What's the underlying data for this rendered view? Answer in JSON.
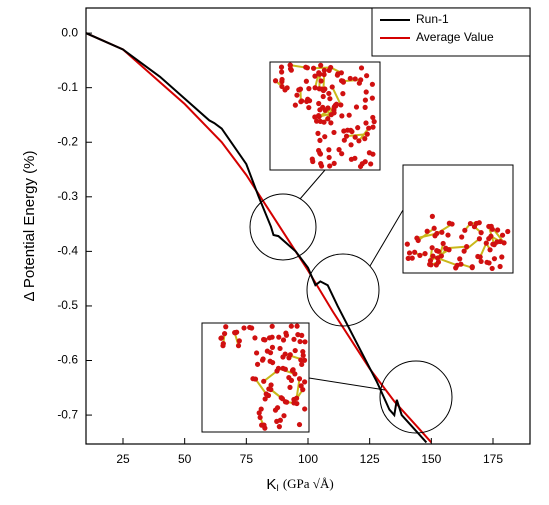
{
  "chart_data": {
    "type": "line",
    "y_label": "Δ Potential Energy (%)",
    "x_label": {
      "main": "K",
      "sub": "I",
      "unit": "(GPa √Å)"
    },
    "xlim": [
      10,
      190
    ],
    "ylim": [
      -0.753,
      0.046
    ],
    "xticks": [
      25,
      50,
      75,
      100,
      125,
      150,
      175
    ],
    "yticks": [
      {
        "value": 0,
        "label": "0.0"
      },
      -0.1,
      -0.2,
      -0.3,
      -0.4,
      -0.5,
      -0.6,
      -0.7
    ],
    "legend": "top-right",
    "series": [
      {
        "name": "Run-1",
        "color": "#000000",
        "x": [
          10,
          25,
          40,
          50,
          60,
          62,
          65,
          75,
          80,
          85,
          86,
          88,
          95,
          100,
          103,
          105,
          108,
          112,
          120,
          128,
          133,
          135,
          136,
          138,
          145,
          148
        ],
        "values": [
          0,
          -0.03,
          -0.08,
          -0.12,
          -0.16,
          -0.165,
          -0.175,
          -0.24,
          -0.3,
          -0.355,
          -0.37,
          -0.372,
          -0.4,
          -0.43,
          -0.462,
          -0.455,
          -0.462,
          -0.5,
          -0.57,
          -0.64,
          -0.69,
          -0.7,
          -0.672,
          -0.7,
          -0.735,
          -0.75
        ]
      },
      {
        "name": "Average Value",
        "color": "#d40000",
        "x": [
          10,
          25,
          40,
          50,
          65,
          75,
          85,
          95,
          100,
          110,
          120,
          125,
          135,
          145,
          150
        ],
        "values": [
          0,
          -0.03,
          -0.09,
          -0.13,
          -0.2,
          -0.26,
          -0.33,
          -0.4,
          -0.435,
          -0.51,
          -0.58,
          -0.615,
          -0.675,
          -0.725,
          -0.75
        ]
      }
    ]
  }
}
